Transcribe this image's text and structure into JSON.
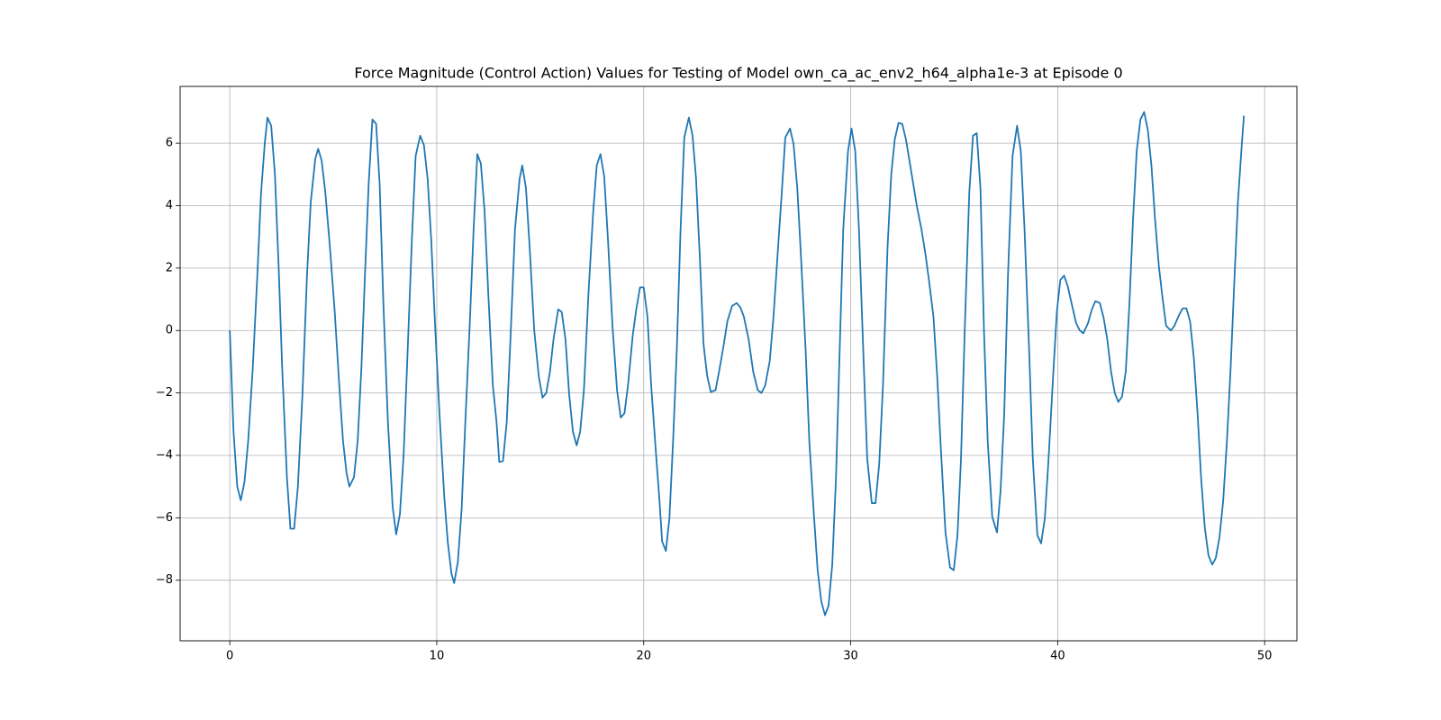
{
  "chart_data": {
    "type": "line",
    "title": "Force Magnitude (Control Action) Values for Testing of Model own_ca_ac_env2_h64_alpha1e-3 at Episode 0",
    "x": [
      0,
      0.18,
      0.36,
      0.53,
      0.71,
      0.89,
      1.11,
      1.33,
      1.51,
      1.69,
      1.82,
      2.0,
      2.18,
      2.36,
      2.53,
      2.76,
      2.93,
      3.11,
      3.29,
      3.51,
      3.73,
      3.91,
      4.13,
      4.27,
      4.44,
      4.62,
      4.84,
      5.07,
      5.29,
      5.47,
      5.64,
      5.78,
      6.0,
      6.18,
      6.36,
      6.53,
      6.71,
      6.89,
      7.07,
      7.24,
      7.42,
      7.64,
      7.87,
      8.04,
      8.22,
      8.4,
      8.58,
      8.8,
      8.98,
      9.2,
      9.38,
      9.56,
      9.73,
      9.91,
      10.13,
      10.36,
      10.53,
      10.71,
      10.84,
      11.02,
      11.2,
      11.38,
      11.6,
      11.78,
      11.96,
      12.13,
      12.31,
      12.49,
      12.71,
      12.89,
      13.02,
      13.2,
      13.38,
      13.56,
      13.78,
      14.0,
      14.13,
      14.31,
      14.49,
      14.71,
      14.93,
      15.11,
      15.29,
      15.47,
      15.64,
      15.87,
      16.04,
      16.22,
      16.4,
      16.58,
      16.76,
      16.93,
      17.11,
      17.33,
      17.56,
      17.73,
      17.91,
      18.09,
      18.27,
      18.49,
      18.71,
      18.89,
      19.07,
      19.24,
      19.47,
      19.64,
      19.82,
      20.0,
      20.18,
      20.36,
      20.58,
      20.76,
      20.89,
      21.07,
      21.24,
      21.42,
      21.6,
      21.78,
      21.96,
      22.18,
      22.36,
      22.53,
      22.71,
      22.89,
      23.07,
      23.24,
      23.47,
      23.64,
      23.87,
      24.04,
      24.27,
      24.49,
      24.67,
      24.84,
      25.07,
      25.29,
      25.51,
      25.69,
      25.87,
      26.09,
      26.27,
      26.49,
      26.67,
      26.84,
      27.07,
      27.24,
      27.42,
      27.6,
      27.82,
      28.0,
      28.22,
      28.4,
      28.58,
      28.76,
      28.93,
      29.11,
      29.29,
      29.47,
      29.64,
      29.87,
      30.04,
      30.22,
      30.4,
      30.62,
      30.8,
      31.02,
      31.2,
      31.38,
      31.56,
      31.78,
      31.96,
      32.13,
      32.31,
      32.49,
      32.67,
      32.84,
      33.02,
      33.2,
      33.42,
      33.6,
      33.78,
      34.0,
      34.18,
      34.36,
      34.58,
      34.8,
      34.98,
      35.16,
      35.33,
      35.51,
      35.73,
      35.91,
      36.09,
      36.27,
      36.44,
      36.62,
      36.84,
      37.07,
      37.24,
      37.42,
      37.6,
      37.82,
      38.04,
      38.22,
      38.4,
      38.62,
      38.8,
      39.02,
      39.2,
      39.38,
      39.56,
      39.78,
      39.96,
      40.13,
      40.31,
      40.49,
      40.67,
      40.89,
      41.07,
      41.24,
      41.47,
      41.64,
      41.82,
      42.04,
      42.22,
      42.4,
      42.58,
      42.76,
      42.93,
      43.11,
      43.29,
      43.47,
      43.64,
      43.82,
      44.0,
      44.18,
      44.36,
      44.53,
      44.71,
      44.89,
      45.07,
      45.24,
      45.47,
      45.64,
      45.87,
      46.04,
      46.22,
      46.4,
      46.58,
      46.76,
      46.93,
      47.11,
      47.29,
      47.47,
      47.64,
      47.82,
      48.0,
      48.18,
      48.36,
      48.53,
      48.71,
      48.89,
      49.0
    ],
    "series": [
      {
        "color": "#1f77b4",
        "values": [
          0,
          -3.24,
          -5.0,
          -5.44,
          -4.85,
          -3.53,
          -1.2,
          1.76,
          4.4,
          6.0,
          6.82,
          6.56,
          5.0,
          2.06,
          -1.18,
          -4.7,
          -6.35,
          -6.35,
          -5.0,
          -2.06,
          1.76,
          4.1,
          5.5,
          5.82,
          5.44,
          4.4,
          2.65,
          0.6,
          -1.76,
          -3.53,
          -4.56,
          -5.0,
          -4.7,
          -3.53,
          -1.18,
          1.76,
          4.7,
          6.76,
          6.62,
          4.7,
          0.88,
          -2.94,
          -5.65,
          -6.53,
          -5.88,
          -3.97,
          -0.88,
          2.94,
          5.59,
          6.24,
          5.94,
          4.85,
          2.94,
          0.29,
          -2.65,
          -5.29,
          -6.76,
          -7.79,
          -8.09,
          -7.41,
          -5.74,
          -2.94,
          0.29,
          3.24,
          5.65,
          5.35,
          3.82,
          1.18,
          -1.76,
          -2.94,
          -4.21,
          -4.18,
          -2.94,
          -0.29,
          3.24,
          4.85,
          5.29,
          4.56,
          2.65,
          0,
          -1.47,
          -2.15,
          -2.0,
          -1.32,
          -0.29,
          0.68,
          0.59,
          -0.29,
          -2.06,
          -3.24,
          -3.68,
          -3.24,
          -1.91,
          1.18,
          3.82,
          5.29,
          5.65,
          4.94,
          2.94,
          0.15,
          -1.91,
          -2.79,
          -2.65,
          -1.76,
          -0.15,
          0.68,
          1.38,
          1.38,
          0.44,
          -1.76,
          -3.82,
          -5.44,
          -6.76,
          -7.06,
          -6.03,
          -3.53,
          -0.59,
          3.24,
          6.18,
          6.82,
          6.24,
          4.85,
          2.35,
          -0.44,
          -1.47,
          -1.97,
          -1.91,
          -1.32,
          -0.44,
          0.29,
          0.79,
          0.88,
          0.74,
          0.44,
          -0.29,
          -1.32,
          -1.91,
          -2.0,
          -1.76,
          -0.97,
          0.44,
          2.65,
          4.41,
          6.18,
          6.47,
          5.97,
          4.56,
          2.35,
          -0.59,
          -3.53,
          -5.88,
          -7.65,
          -8.68,
          -9.12,
          -8.82,
          -7.5,
          -4.71,
          -0.59,
          3.24,
          5.74,
          6.47,
          5.74,
          3.24,
          -0.88,
          -4.12,
          -5.53,
          -5.53,
          -4.26,
          -1.76,
          2.65,
          5.0,
          6.12,
          6.65,
          6.62,
          6.12,
          5.44,
          4.71,
          3.97,
          3.24,
          2.5,
          1.62,
          0.44,
          -1.47,
          -3.82,
          -6.47,
          -7.59,
          -7.68,
          -6.56,
          -4.12,
          0,
          4.41,
          6.24,
          6.32,
          4.56,
          0,
          -3.53,
          -5.97,
          -6.47,
          -5.15,
          -2.65,
          1.76,
          5.59,
          6.56,
          5.74,
          3.24,
          -0.59,
          -4.12,
          -6.56,
          -6.82,
          -6.03,
          -4.12,
          -1.47,
          0.59,
          1.62,
          1.76,
          1.41,
          0.88,
          0.24,
          0,
          -0.09,
          0.24,
          0.65,
          0.94,
          0.88,
          0.41,
          -0.29,
          -1.32,
          -2.0,
          -2.29,
          -2.12,
          -1.32,
          0.88,
          3.53,
          5.74,
          6.76,
          7.0,
          6.41,
          5.29,
          3.53,
          2.06,
          1.03,
          0.15,
          0,
          0.15,
          0.5,
          0.71,
          0.71,
          0.29,
          -0.88,
          -2.65,
          -4.71,
          -6.32,
          -7.21,
          -7.5,
          -7.29,
          -6.62,
          -5.44,
          -3.53,
          -1.18,
          1.47,
          4.12,
          5.88,
          6.88
        ]
      }
    ],
    "xlim": [
      -2.4,
      51.56
    ],
    "ylim": [
      -9.94,
      7.82
    ],
    "xticks": [
      0,
      10,
      20,
      30,
      40,
      50
    ],
    "yticks": [
      {
        "value": -8,
        "label": "−8"
      },
      {
        "value": -6,
        "label": "−6"
      },
      {
        "value": -4,
        "label": "−4"
      },
      {
        "value": -2,
        "label": "−2"
      },
      0,
      2,
      4,
      6
    ],
    "grid": true
  }
}
